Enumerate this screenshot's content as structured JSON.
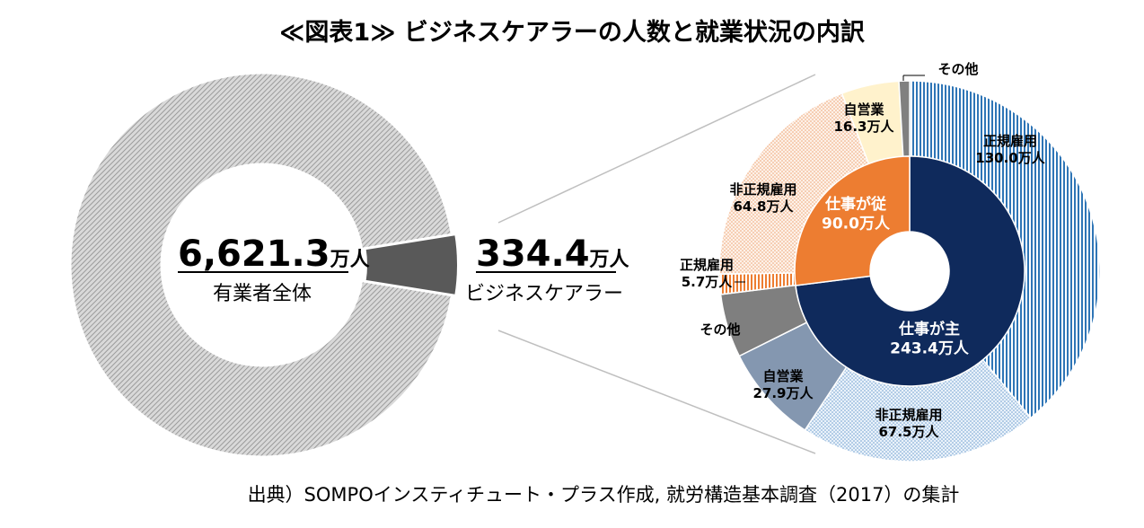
{
  "chart_data": [
    {
      "type": "pie",
      "title": "≪図表1≫ ビジネスケアラーの人数と就業状況の内訳",
      "categories": [
        "有業者全体",
        "ビジネスケアラー"
      ],
      "values": [
        6621.3,
        334.4
      ],
      "colors": [
        "#bfbfbf",
        "#595959"
      ],
      "center_value": "6,621.3",
      "center_unit": "万人",
      "center_label": "有業者全体",
      "callout_value": "334.4",
      "callout_unit": "万人",
      "callout_label": "ビジネスケアラー"
    },
    {
      "type": "pie",
      "series": [
        {
          "name": "inner",
          "categories": [
            "仕事が主",
            "仕事が従"
          ],
          "values": [
            243.4,
            90.0
          ],
          "labels": [
            {
              "line1": "仕事が主",
              "line2": "243.4万人"
            },
            {
              "line1": "仕事が従",
              "line2": "90.0万人"
            }
          ],
          "colors": [
            "#0f2a5c",
            "#ed7d31"
          ]
        },
        {
          "name": "outer",
          "categories": [
            "正規雇用",
            "非正規雇用",
            "自営業",
            "その他",
            "正規雇用",
            "非正規雇用",
            "自営業",
            "その他"
          ],
          "values": [
            130.0,
            67.5,
            27.9,
            18.0,
            5.7,
            64.8,
            16.3,
            3.0
          ],
          "labels": [
            {
              "line1": "正規雇用",
              "line2": "130.0万人"
            },
            {
              "line1": "非正規雇用",
              "line2": "67.5万人"
            },
            {
              "line1": "自営業",
              "line2": "27.9万人"
            },
            {
              "line1": "その他",
              "line2": ""
            },
            {
              "line1": "正規雇用",
              "line2": "5.7万人"
            },
            {
              "line1": "非正規雇用",
              "line2": "64.8万人"
            },
            {
              "line1": "自営業",
              "line2": "16.3万人"
            },
            {
              "line1": "その他",
              "line2": ""
            }
          ],
          "colors": [
            "#2e75b6",
            "#bdd7ee",
            "#8497b0",
            "#7f7f7f",
            "#ed7d31",
            "#f8cbad",
            "#fff2cc",
            "#808080"
          ]
        }
      ]
    }
  ],
  "source": "出典）SOMPOインスティチュート・プラス作成, 就労構造基本調査（2017）の集計"
}
